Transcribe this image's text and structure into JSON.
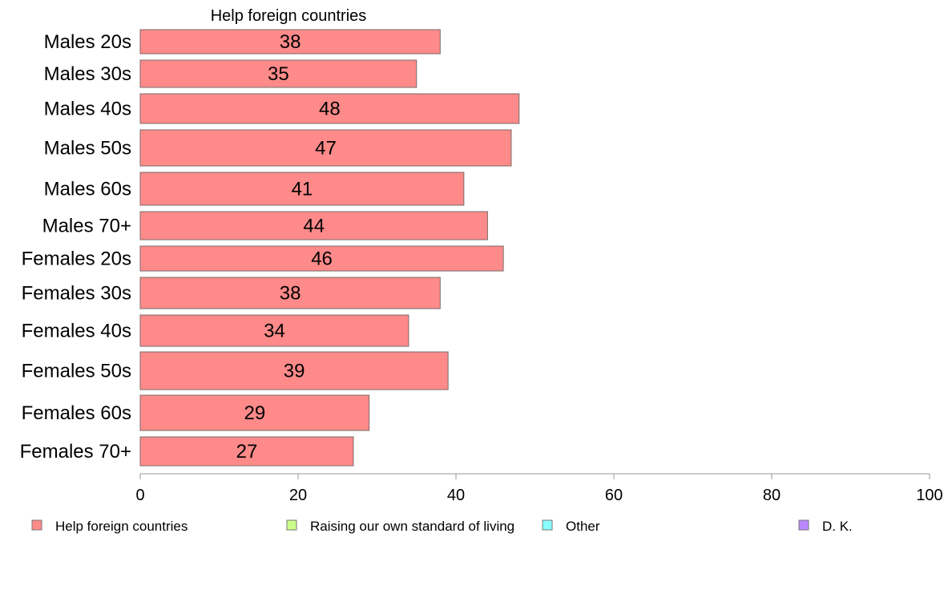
{
  "chart_data": {
    "type": "bar",
    "orientation": "horizontal",
    "title": "Help foreign countries",
    "categories": [
      "Males 20s",
      "Males 30s",
      "Males 40s",
      "Males 50s",
      "Males 60s",
      "Males 70+",
      "Females 20s",
      "Females 30s",
      "Females 40s",
      "Females 50s",
      "Females 60s",
      "Females 70+"
    ],
    "series": [
      {
        "name": "Help foreign countries",
        "values": [
          38,
          35,
          48,
          47,
          41,
          44,
          46,
          38,
          34,
          39,
          29,
          27
        ]
      }
    ],
    "xlim": [
      0,
      100
    ],
    "xticks": [
      0,
      20,
      40,
      60,
      80,
      100
    ],
    "grid": false,
    "legend_position": "bottom",
    "legend": [
      {
        "label": "Help foreign countries",
        "color": "#ff8a8a"
      },
      {
        "label": "Raising our own standard of living",
        "color": "#ccff88"
      },
      {
        "label": "Other",
        "color": "#88ffff"
      },
      {
        "label": "D. K.",
        "color": "#bb88ff"
      }
    ],
    "bar_color": "#ff8a8a",
    "bar_stroke": "#7a6a6a"
  }
}
